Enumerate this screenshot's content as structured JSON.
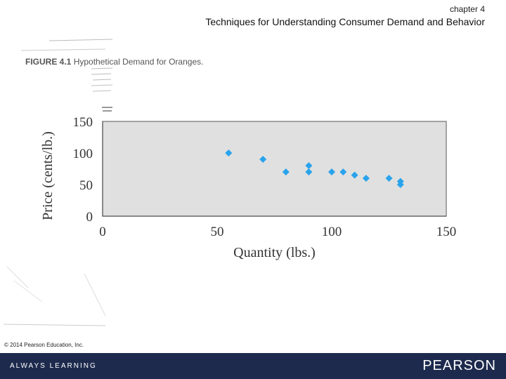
{
  "header": {
    "chapter": "chapter 4",
    "title": "Techniques for Understanding Consumer Demand and Behavior"
  },
  "figure": {
    "label": "FIGURE 4.1",
    "caption": "Hypothetical Demand for Oranges."
  },
  "chart_data": {
    "type": "scatter",
    "title": "",
    "xlabel": "Quantity (lbs.)",
    "ylabel": "Price (cents/lb.)",
    "xlim": [
      0,
      150
    ],
    "ylim": [
      0,
      150
    ],
    "xticks": [
      0,
      50,
      100,
      150
    ],
    "yticks": [
      0,
      50,
      100,
      150
    ],
    "grid": false,
    "plot_background": "#e0e0e0",
    "marker_color": "#2aa3ec",
    "series": [
      {
        "points": [
          {
            "x": 55,
            "y": 100
          },
          {
            "x": 70,
            "y": 90
          },
          {
            "x": 80,
            "y": 70
          },
          {
            "x": 90,
            "y": 80
          },
          {
            "x": 90,
            "y": 70
          },
          {
            "x": 100,
            "y": 70
          },
          {
            "x": 105,
            "y": 70
          },
          {
            "x": 110,
            "y": 65
          },
          {
            "x": 115,
            "y": 60
          },
          {
            "x": 125,
            "y": 60
          },
          {
            "x": 130,
            "y": 55
          },
          {
            "x": 130,
            "y": 50
          }
        ]
      }
    ]
  },
  "copyright": "© 2014 Pearson Education, Inc.",
  "footer": {
    "left": "ALWAYS LEARNING",
    "right": "PEARSON",
    "background": "#1d2a4d"
  }
}
